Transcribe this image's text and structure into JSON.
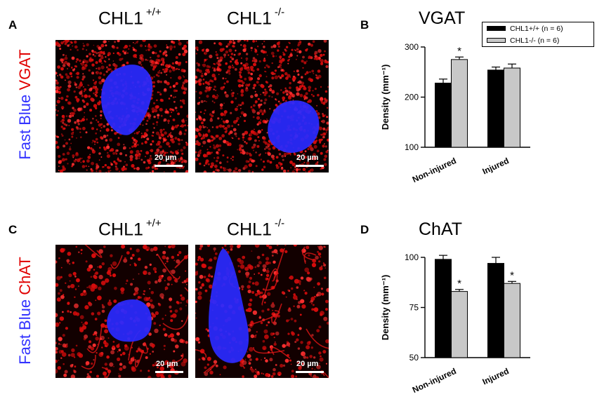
{
  "panels": {
    "A": {
      "letter": "A",
      "genotype_wt": "CHL1",
      "genotype_wt_sup": "+/+",
      "genotype_ko": "CHL1",
      "genotype_ko_sup": "-/-",
      "side_label_blue": "Fast Blue",
      "side_label_red": "VGAT",
      "scalebar": "20 µm"
    },
    "B": {
      "letter": "B"
    },
    "C": {
      "letter": "C",
      "genotype_wt": "CHL1",
      "genotype_wt_sup": "+/+",
      "genotype_ko": "CHL1",
      "genotype_ko_sup": "-/-",
      "side_label_blue": "Fast Blue",
      "side_label_red": "ChAT",
      "scalebar": "20 µm"
    },
    "D": {
      "letter": "D"
    }
  },
  "legend": {
    "items": [
      {
        "label": "CHL1+/+ (n = 6)",
        "color": "#000000"
      },
      {
        "label": "CHL1-/- (n = 6)",
        "color": "#c8c8c8"
      }
    ]
  },
  "colors": {
    "red_stain": "#e01010",
    "blue_stain": "#2a2aff",
    "bar_wt": "#000000",
    "bar_ko": "#c8c8c8"
  },
  "chart_data": [
    {
      "type": "bar",
      "title": "VGAT",
      "ylabel": "Density (mm⁻¹)",
      "categories": [
        "Non-injured",
        "Injured"
      ],
      "ylim": [
        100,
        300
      ],
      "yticks": [
        100,
        200,
        300
      ],
      "series": [
        {
          "name": "CHL1+/+ (n = 6)",
          "values": [
            228,
            254
          ],
          "errors": [
            8,
            6
          ],
          "significant": [
            false,
            false
          ]
        },
        {
          "name": "CHL1-/- (n = 6)",
          "values": [
            275,
            258
          ],
          "errors": [
            5,
            8
          ],
          "significant": [
            true,
            false
          ]
        }
      ],
      "significance_marker": "*"
    },
    {
      "type": "bar",
      "title": "ChAT",
      "ylabel": "Density (mm⁻¹)",
      "categories": [
        "Non-injured",
        "Injured"
      ],
      "ylim": [
        50,
        100
      ],
      "yticks": [
        50,
        75,
        100
      ],
      "series": [
        {
          "name": "CHL1+/+ (n = 6)",
          "values": [
            99,
            97
          ],
          "errors": [
            2,
            3
          ],
          "significant": [
            false,
            false
          ]
        },
        {
          "name": "CHL1-/- (n = 6)",
          "values": [
            83,
            87
          ],
          "errors": [
            1,
            1
          ],
          "significant": [
            true,
            true
          ]
        }
      ],
      "significance_marker": "*"
    }
  ]
}
